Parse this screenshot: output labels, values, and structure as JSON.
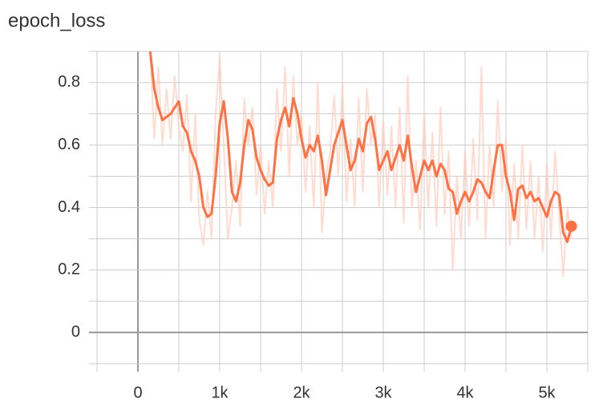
{
  "chart_data": {
    "type": "line",
    "title": "epoch_loss",
    "x": [
      150,
      200,
      250,
      300,
      350,
      400,
      450,
      500,
      550,
      600,
      650,
      700,
      750,
      800,
      850,
      900,
      950,
      1000,
      1050,
      1100,
      1150,
      1200,
      1250,
      1300,
      1350,
      1400,
      1450,
      1500,
      1550,
      1600,
      1650,
      1700,
      1750,
      1800,
      1850,
      1900,
      1950,
      2000,
      2050,
      2100,
      2150,
      2200,
      2250,
      2300,
      2350,
      2400,
      2450,
      2500,
      2550,
      2600,
      2650,
      2700,
      2750,
      2800,
      2850,
      2900,
      2950,
      3000,
      3050,
      3100,
      3150,
      3200,
      3250,
      3300,
      3350,
      3400,
      3450,
      3500,
      3550,
      3600,
      3650,
      3700,
      3750,
      3800,
      3850,
      3900,
      3950,
      4000,
      4050,
      4100,
      4150,
      4200,
      4250,
      4300,
      4350,
      4400,
      4450,
      4500,
      4550,
      4600,
      4650,
      4700,
      4750,
      4800,
      4850,
      4900,
      4950,
      5000,
      5050,
      5100,
      5150,
      5200,
      5250,
      5300
    ],
    "series": [
      {
        "color": "#ffccbc",
        "values": [
          0.9,
          0.62,
          0.85,
          0.6,
          0.78,
          0.62,
          0.82,
          0.66,
          0.58,
          0.76,
          0.42,
          0.7,
          0.36,
          0.28,
          0.45,
          0.3,
          0.7,
          0.88,
          0.6,
          0.3,
          0.4,
          0.55,
          0.34,
          0.75,
          0.6,
          0.72,
          0.44,
          0.6,
          0.38,
          0.55,
          0.4,
          0.78,
          0.58,
          0.85,
          0.5,
          0.82,
          0.6,
          0.7,
          0.45,
          0.66,
          0.4,
          0.8,
          0.32,
          0.5,
          0.58,
          0.76,
          0.5,
          0.8,
          0.42,
          0.62,
          0.4,
          0.75,
          0.45,
          0.78,
          0.6,
          0.7,
          0.4,
          0.68,
          0.44,
          0.66,
          0.4,
          0.72,
          0.35,
          0.82,
          0.4,
          0.55,
          0.33,
          0.7,
          0.4,
          0.64,
          0.34,
          0.72,
          0.38,
          0.58,
          0.2,
          0.5,
          0.3,
          0.58,
          0.34,
          0.62,
          0.36,
          0.85,
          0.3,
          0.6,
          0.4,
          0.74,
          0.45,
          0.62,
          0.28,
          0.54,
          0.3,
          0.6,
          0.33,
          0.55,
          0.3,
          0.5,
          0.26,
          0.54,
          0.3,
          0.58,
          0.38,
          0.18,
          0.4,
          0.3
        ]
      },
      {
        "color": "#ff7043",
        "values": [
          0.9,
          0.78,
          0.72,
          0.68,
          0.69,
          0.7,
          0.72,
          0.74,
          0.66,
          0.64,
          0.58,
          0.55,
          0.5,
          0.4,
          0.37,
          0.38,
          0.5,
          0.67,
          0.74,
          0.62,
          0.45,
          0.42,
          0.48,
          0.6,
          0.68,
          0.65,
          0.56,
          0.52,
          0.49,
          0.47,
          0.48,
          0.62,
          0.68,
          0.72,
          0.66,
          0.75,
          0.7,
          0.62,
          0.56,
          0.6,
          0.58,
          0.63,
          0.55,
          0.44,
          0.52,
          0.6,
          0.64,
          0.68,
          0.6,
          0.52,
          0.55,
          0.62,
          0.58,
          0.67,
          0.69,
          0.62,
          0.52,
          0.55,
          0.58,
          0.52,
          0.56,
          0.6,
          0.55,
          0.63,
          0.53,
          0.45,
          0.5,
          0.55,
          0.52,
          0.55,
          0.5,
          0.54,
          0.52,
          0.46,
          0.45,
          0.38,
          0.42,
          0.45,
          0.42,
          0.45,
          0.49,
          0.48,
          0.45,
          0.43,
          0.52,
          0.6,
          0.6,
          0.5,
          0.45,
          0.36,
          0.46,
          0.47,
          0.43,
          0.45,
          0.42,
          0.43,
          0.4,
          0.37,
          0.42,
          0.45,
          0.44,
          0.32,
          0.29,
          0.34
        ]
      }
    ],
    "xlim": [
      -500,
      5500
    ],
    "ylim": [
      -0.1,
      0.9
    ],
    "xticks": [
      0,
      {
        "value": 1000,
        "label": "1k"
      },
      {
        "value": 2000,
        "label": "2k"
      },
      {
        "value": 3000,
        "label": "3k"
      },
      {
        "value": 4000,
        "label": "4k"
      },
      {
        "value": 5000,
        "label": "5k"
      }
    ],
    "yticks": [
      0,
      0.2,
      0.4,
      0.6,
      0.8
    ],
    "xgrid": [
      -500,
      0,
      500,
      1000,
      1500,
      2000,
      2500,
      3000,
      3500,
      4000,
      4500,
      5000,
      5500
    ],
    "ygrid": [
      -0.1,
      0,
      0.1,
      0.2,
      0.3,
      0.4,
      0.5,
      0.6,
      0.7,
      0.8,
      0.9
    ]
  }
}
